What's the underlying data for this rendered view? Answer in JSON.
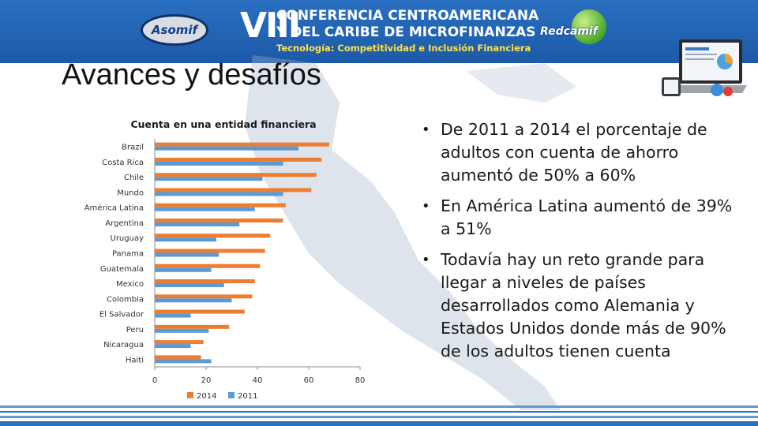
{
  "header": {
    "left_logo_text": "Asomif",
    "roman_numeral": "VIII",
    "conference_line1": "CONFERENCIA CENTROAMERICANA",
    "conference_line2": "Y DEL CARIBE DE MICROFINANZAS",
    "conference_subtitle": "Tecnología: Competitividad e Inclusión Financiera",
    "right_logo_text": "Redcamif"
  },
  "slide": {
    "title": "Avances y desafíos",
    "bullets": [
      "De 2011 a 2014 el porcentaje de adultos con cuenta de ahorro aumentó de 50% a 60%",
      "En América Latina aumentó de 39% a 51%",
      "Todavía hay un reto grande para llegar a niveles de países desarrollados como Alemania y Estados Unidos donde más de 90% de los adultos tienen cuenta"
    ]
  },
  "colors": {
    "banner": "#1c5aa8",
    "series_2014": "#ed7d31",
    "series_2011": "#5b9bd5"
  },
  "chart_data": {
    "type": "bar",
    "orientation": "horizontal",
    "title": "Cuenta en una entidad financiera",
    "xlabel": "",
    "ylabel": "",
    "categories": [
      "Brazil",
      "Costa Rica",
      "Chile",
      "Mundo",
      "América Latina",
      "Argentina",
      "Uruguay",
      "Panama",
      "Guatemala",
      "Mexico",
      "Colombia",
      "El Salvador",
      "Peru",
      "Nicaragua",
      "Haiti"
    ],
    "series": [
      {
        "name": "2014",
        "values": [
          68,
          65,
          63,
          61,
          51,
          50,
          45,
          43,
          41,
          39,
          38,
          35,
          29,
          19,
          18
        ]
      },
      {
        "name": "2011",
        "values": [
          56,
          50,
          42,
          50,
          39,
          33,
          24,
          25,
          22,
          27,
          30,
          14,
          21,
          14,
          22
        ]
      }
    ],
    "xlim": [
      0,
      80
    ],
    "xticks": [
      "0",
      "20",
      "40",
      "60",
      "80"
    ],
    "grid": false,
    "legend": "bottom"
  }
}
